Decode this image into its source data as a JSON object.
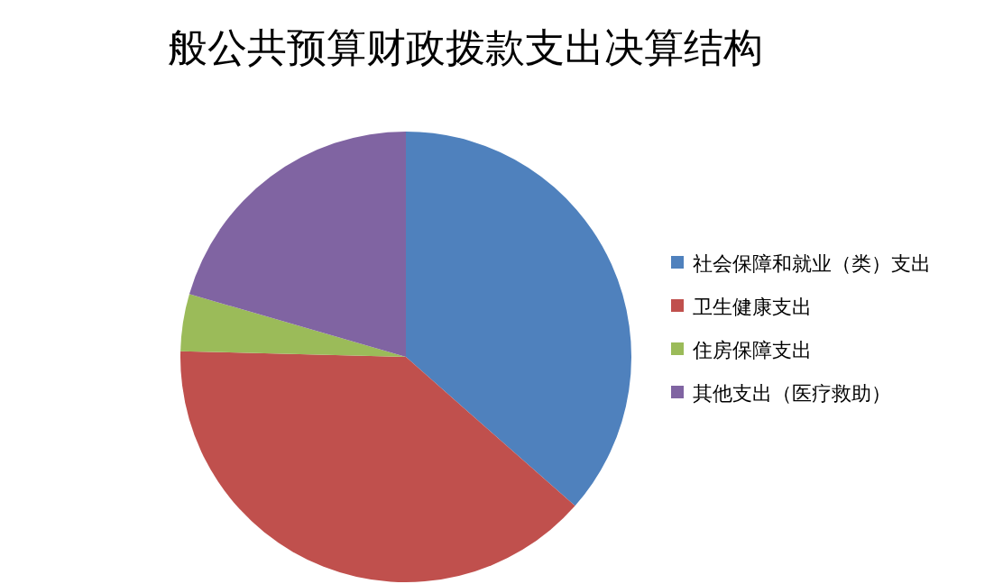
{
  "chart_data": {
    "type": "pie",
    "title": "般公共预算财政拨款支出决算结构",
    "categories": [
      "社会保障和就业（类）支出",
      "卫生健康支出",
      "住房保障支出",
      "其他支出（医疗救助）"
    ],
    "values": [
      36.5,
      38.9,
      4.1,
      20.5
    ],
    "colors": [
      "#4f81bd",
      "#c0504d",
      "#9bbb59",
      "#8064a2"
    ],
    "legend": "right"
  }
}
